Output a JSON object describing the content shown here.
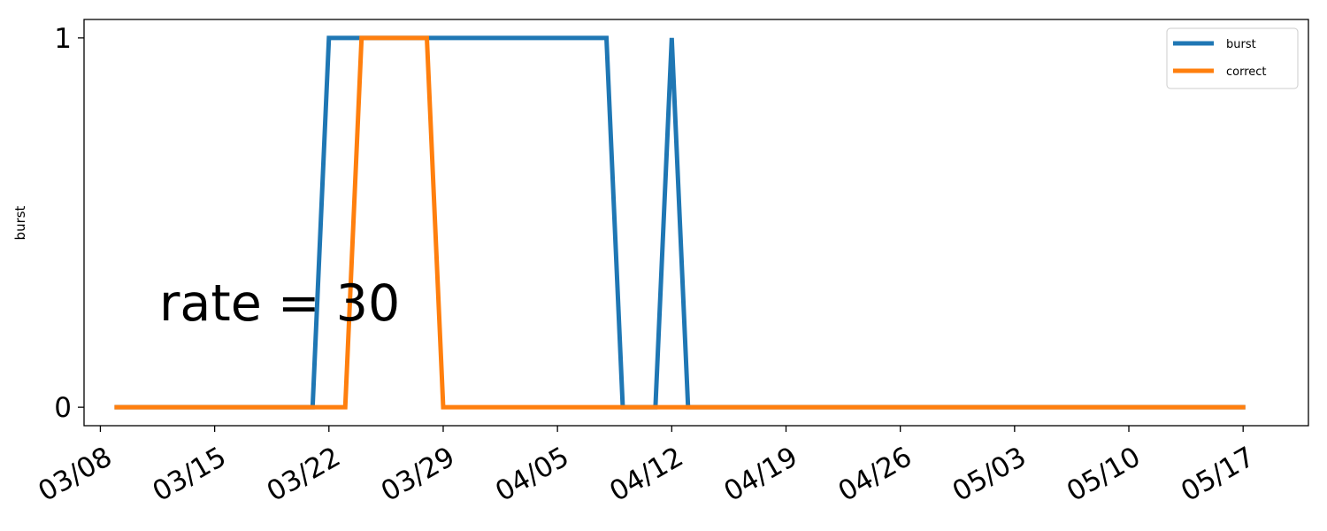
{
  "chart_data": {
    "type": "line",
    "title": "",
    "xlabel": "",
    "ylabel": "burst",
    "annotation": "rate = 30",
    "x_tick_labels": [
      "03/08",
      "03/15",
      "03/22",
      "03/29",
      "04/05",
      "04/12",
      "04/19",
      "04/26",
      "05/03",
      "05/10",
      "05/17"
    ],
    "y_tick_labels": [
      "0",
      "1"
    ],
    "xlim": [
      "2020-03-07",
      "2020-05-21"
    ],
    "ylim": [
      -0.05,
      1.05
    ],
    "grid": false,
    "legend_position": "top-right",
    "series": [
      {
        "name": "burst",
        "color": "#1f77b4",
        "points": [
          [
            "2020-03-09",
            0
          ],
          [
            "2020-03-21",
            0
          ],
          [
            "2020-03-22",
            1
          ],
          [
            "2020-04-08",
            1
          ],
          [
            "2020-04-09",
            0
          ],
          [
            "2020-04-11",
            0
          ],
          [
            "2020-04-12",
            1
          ],
          [
            "2020-04-13",
            0
          ],
          [
            "2020-05-17",
            0
          ]
        ]
      },
      {
        "name": "correct",
        "color": "#ff7f0e",
        "points": [
          [
            "2020-03-09",
            0
          ],
          [
            "2020-03-23",
            0
          ],
          [
            "2020-03-24",
            1
          ],
          [
            "2020-03-28",
            1
          ],
          [
            "2020-03-29",
            0
          ],
          [
            "2020-05-17",
            0
          ]
        ]
      }
    ]
  }
}
